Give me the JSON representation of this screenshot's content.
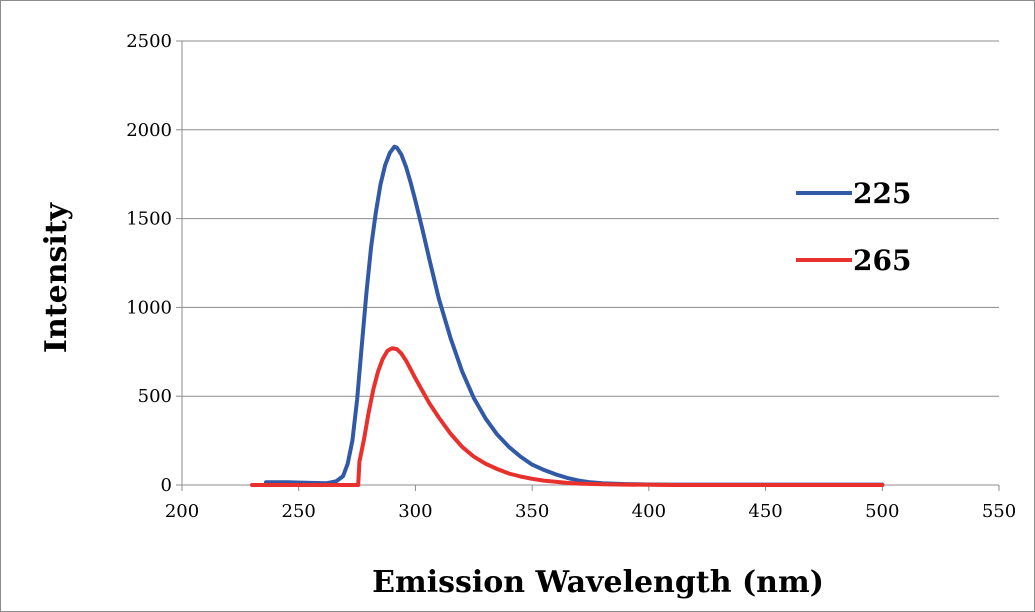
{
  "chart_data": {
    "type": "line",
    "title": "",
    "xlabel": "Emission Wavelength (nm)",
    "ylabel": "Intensity",
    "xlim": [
      200,
      550
    ],
    "ylim": [
      0,
      2500
    ],
    "x_ticks": [
      200,
      250,
      300,
      350,
      400,
      450,
      500,
      550
    ],
    "y_ticks": [
      0,
      500,
      1000,
      1500,
      2000,
      2500
    ],
    "grid": "horizontal",
    "legend_position": "right",
    "series": [
      {
        "name": "225",
        "color": "#3159a6",
        "x": [
          236,
          245,
          255,
          262,
          266,
          269,
          271,
          273,
          275,
          277,
          279,
          281,
          283,
          285,
          287,
          289,
          291,
          292,
          294,
          296,
          298,
          300,
          303,
          306,
          310,
          315,
          320,
          325,
          330,
          335,
          340,
          345,
          350,
          355,
          360,
          365,
          370,
          375,
          380,
          390,
          400,
          410,
          500
        ],
        "values": [
          15,
          15,
          12,
          10,
          20,
          50,
          120,
          250,
          480,
          780,
          1080,
          1340,
          1530,
          1690,
          1800,
          1870,
          1905,
          1900,
          1860,
          1790,
          1700,
          1600,
          1440,
          1270,
          1050,
          830,
          640,
          490,
          375,
          285,
          215,
          160,
          115,
          85,
          60,
          40,
          25,
          15,
          10,
          5,
          3,
          2,
          2
        ]
      },
      {
        "name": "265",
        "color": "#e8302d",
        "x": [
          230,
          250,
          270,
          275.5,
          276,
          278,
          280,
          282,
          284,
          286,
          288,
          290,
          292,
          294,
          296,
          298,
          300,
          303,
          306,
          310,
          315,
          320,
          325,
          330,
          335,
          340,
          345,
          350,
          355,
          360,
          365,
          370,
          380,
          390,
          400,
          410,
          450,
          500
        ],
        "values": [
          0,
          0,
          0,
          0,
          130,
          260,
          410,
          540,
          640,
          710,
          755,
          770,
          765,
          740,
          700,
          650,
          600,
          530,
          460,
          380,
          290,
          215,
          160,
          120,
          90,
          65,
          48,
          35,
          25,
          18,
          12,
          8,
          4,
          2,
          1,
          0,
          0,
          0
        ]
      }
    ]
  }
}
